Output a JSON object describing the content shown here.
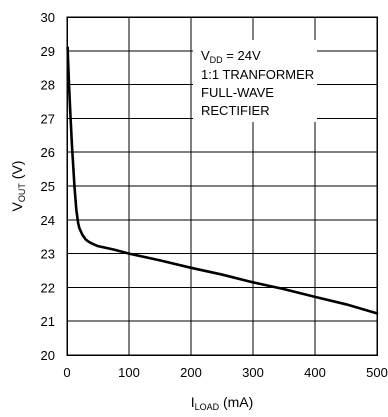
{
  "chart_data": {
    "type": "line",
    "title": "",
    "xlabel": {
      "main": "I",
      "sub": "LOAD",
      "unit": " (mA)"
    },
    "ylabel": {
      "main": "V",
      "sub": "OUT",
      "unit": " (V)"
    },
    "xlim": [
      0,
      500
    ],
    "ylim": [
      20,
      30
    ],
    "xticks": [
      "0",
      "100",
      "200",
      "300",
      "400",
      "500"
    ],
    "xtick_values": [
      0,
      100,
      200,
      300,
      400,
      500
    ],
    "yticks": [
      "20",
      "21",
      "22",
      "23",
      "24",
      "25",
      "26",
      "27",
      "28",
      "29",
      "30"
    ],
    "ytick_values": [
      20,
      21,
      22,
      23,
      24,
      25,
      26,
      27,
      28,
      29,
      30
    ],
    "grid": true,
    "annotation": {
      "line1_main": "V",
      "line1_sub": "DD",
      "line1_rest": " = 24V",
      "line2": "1:1 TRANFORMER",
      "line3": "FULL-WAVE",
      "line4": "RECTIFIER"
    },
    "series": [
      {
        "color": "#000000",
        "x": [
          1,
          2,
          3,
          5,
          8,
          10,
          12,
          15,
          18,
          20,
          25,
          30,
          35,
          40,
          50,
          75,
          100,
          150,
          200,
          250,
          300,
          350,
          400,
          450,
          500
        ],
        "y": [
          29.1,
          28.6,
          28.1,
          27.3,
          26.2,
          25.6,
          25.0,
          24.3,
          23.9,
          23.75,
          23.55,
          23.42,
          23.35,
          23.3,
          23.22,
          23.12,
          23.0,
          22.8,
          22.58,
          22.38,
          22.15,
          21.95,
          21.72,
          21.5,
          21.23
        ]
      }
    ]
  }
}
